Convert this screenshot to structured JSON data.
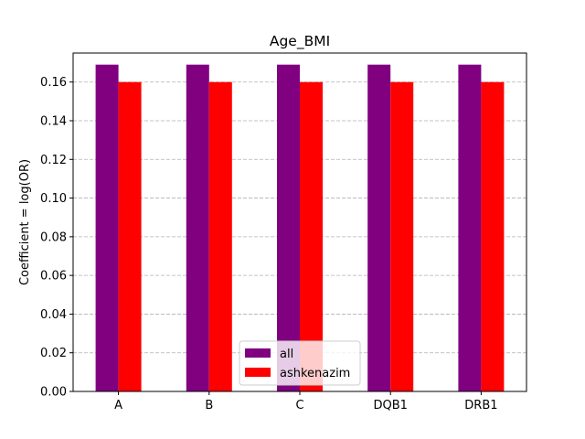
{
  "chart_data": {
    "type": "bar",
    "title": "Age_BMI",
    "xlabel": "",
    "ylabel": "Coefficient = log(OR)",
    "categories": [
      "A",
      "B",
      "C",
      "DQB1",
      "DRB1"
    ],
    "series": [
      {
        "name": "all",
        "values": [
          0.169,
          0.169,
          0.169,
          0.169,
          0.169
        ],
        "color": "#800080"
      },
      {
        "name": "ashkenazim",
        "values": [
          0.16,
          0.16,
          0.16,
          0.16,
          0.16
        ],
        "color": "#ff0000"
      }
    ],
    "ylim": [
      0,
      0.175
    ],
    "yticks": [
      "0.00",
      "0.02",
      "0.04",
      "0.06",
      "0.08",
      "0.10",
      "0.12",
      "0.14",
      "0.16"
    ],
    "grid": "horizontal dashed",
    "legend_position": "lower center"
  }
}
